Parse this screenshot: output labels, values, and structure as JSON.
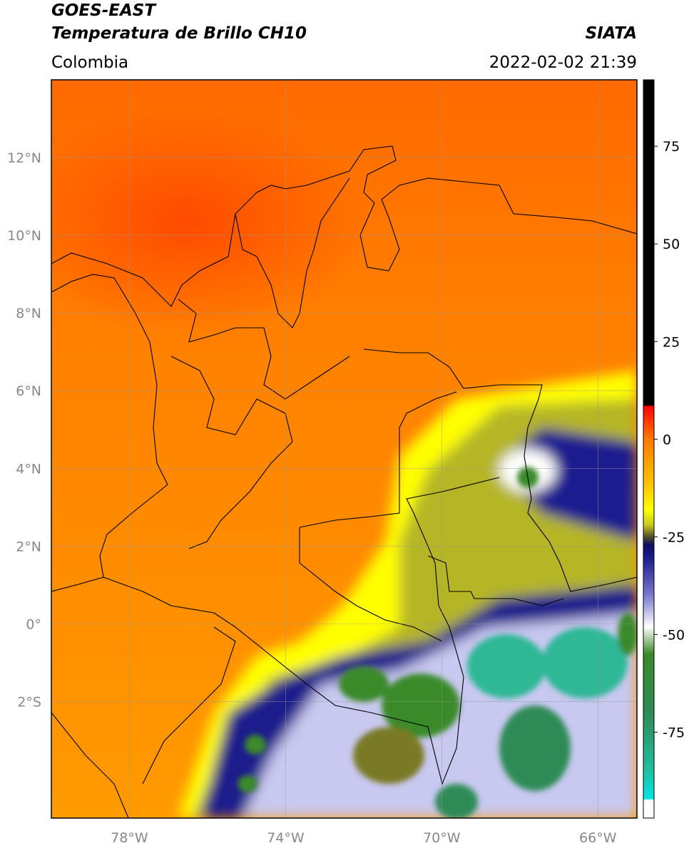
{
  "header": {
    "title": "GOES-EAST",
    "subtitle": "Temperatura de Brillo CH10",
    "region": "Colombia",
    "org": "SIATA",
    "datetime": "2022-02-02 21:39"
  },
  "map": {
    "lon_range": [
      -80,
      -65
    ],
    "lat_range": [
      -5,
      14
    ],
    "lon_ticks": [
      {
        "value": -78,
        "label": "78°W"
      },
      {
        "value": -74,
        "label": "74°W"
      },
      {
        "value": -70,
        "label": "70°W"
      },
      {
        "value": -66,
        "label": "66°W"
      }
    ],
    "lat_ticks": [
      {
        "value": 12,
        "label": "12°N"
      },
      {
        "value": 10,
        "label": "10°N"
      },
      {
        "value": 8,
        "label": "8°N"
      },
      {
        "value": 6,
        "label": "6°N"
      },
      {
        "value": 4,
        "label": "4°N"
      },
      {
        "value": 2,
        "label": "2°N"
      },
      {
        "value": 0,
        "label": "0°"
      },
      {
        "value": -2,
        "label": "2°S"
      }
    ],
    "grid": true
  },
  "colorbar": {
    "range": [
      -97,
      92
    ],
    "ticks": [
      75,
      50,
      25,
      0,
      -25,
      -50,
      -75
    ],
    "colormap": [
      {
        "value": 92,
        "color": "#000000"
      },
      {
        "value": 8.6,
        "color": "#000000"
      },
      {
        "value": 8.5,
        "color": "#ff0000"
      },
      {
        "value": 0,
        "color": "#ff7a00"
      },
      {
        "value": -12,
        "color": "#ffc800"
      },
      {
        "value": -18,
        "color": "#ffff00"
      },
      {
        "value": -22,
        "color": "#c8c820"
      },
      {
        "value": -25,
        "color": "#505028"
      },
      {
        "value": -27,
        "color": "#101060"
      },
      {
        "value": -30,
        "color": "#1a1a8c"
      },
      {
        "value": -40,
        "color": "#7a7ad0"
      },
      {
        "value": -48,
        "color": "#ffffff"
      },
      {
        "value": -55,
        "color": "#3a8a2a"
      },
      {
        "value": -70,
        "color": "#2e8b57"
      },
      {
        "value": -85,
        "color": "#20c0a0"
      },
      {
        "value": -92,
        "color": "#00e5e5"
      },
      {
        "value": -92.5,
        "color": "#ffffff"
      },
      {
        "value": -97,
        "color": "#ffffff"
      }
    ]
  }
}
